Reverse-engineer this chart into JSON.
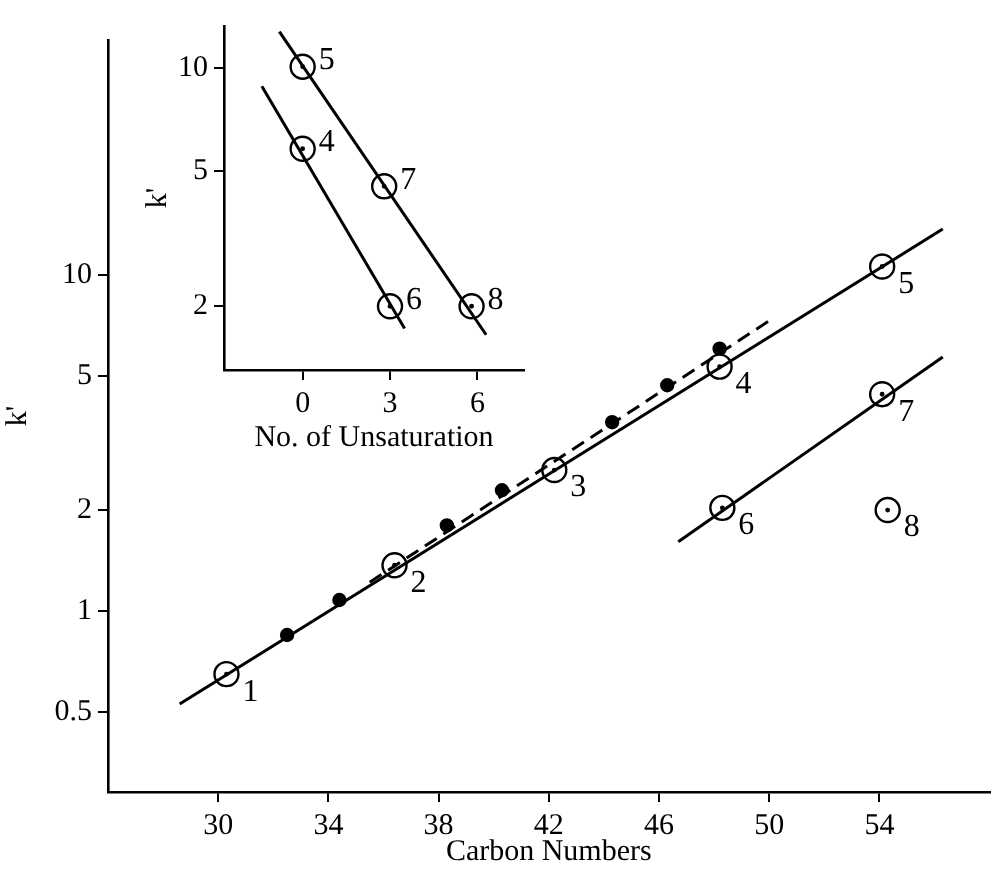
{
  "chart_data": [
    {
      "type": "scatter",
      "xlabel": "Carbon Numbers",
      "ylabel": "k'",
      "log": true,
      "grid": false,
      "legend": false,
      "xlim": [
        26,
        58
      ],
      "xticks": [
        30,
        34,
        38,
        42,
        46,
        50,
        54
      ],
      "ylim": [
        0.29,
        50
      ],
      "yticks": [
        0.5,
        1,
        2,
        5,
        10
      ],
      "series": [
        {
          "type": "line",
          "color": "#000000",
          "line_style": "solid",
          "marker": "none",
          "x": [
            28.6,
            56.3
          ],
          "values": [
            0.53,
            13.7
          ]
        },
        {
          "type": "line",
          "color": "#000000",
          "line_style": "dashed",
          "marker": "none",
          "x": [
            35.5,
            50.1
          ],
          "values": [
            1.22,
            7.4
          ]
        },
        {
          "type": "line",
          "color": "#000000",
          "line_style": "solid",
          "marker": "none",
          "x": [
            46.7,
            56.3
          ],
          "values": [
            1.61,
            5.7
          ]
        },
        {
          "type": "scatter",
          "color": "#ffffff",
          "marker": "circle",
          "x": [
            30.3,
            36.4,
            42.2,
            48.2,
            54.1,
            48.3,
            54.1,
            54.3
          ],
          "values": [
            0.65,
            1.37,
            2.63,
            5.34,
            10.6,
            2.03,
            4.42,
            2.0
          ]
        },
        {
          "type": "scatter",
          "color": "#000000",
          "marker": "circle",
          "x": [
            32.5,
            34.4,
            38.3,
            40.3,
            44.3,
            46.3,
            48.2
          ],
          "values": [
            0.85,
            1.08,
            1.8,
            2.29,
            3.65,
            4.7,
            6.04
          ]
        }
      ],
      "annotations": [
        {
          "text": "1",
          "x": 30.3,
          "y": 0.65
        },
        {
          "text": "2",
          "x": 36.4,
          "y": 1.37
        },
        {
          "text": "3",
          "x": 42.2,
          "y": 2.63
        },
        {
          "text": "4",
          "x": 48.2,
          "y": 5.34
        },
        {
          "text": "5",
          "x": 54.1,
          "y": 10.6
        },
        {
          "text": "6",
          "x": 48.3,
          "y": 2.03
        },
        {
          "text": "7",
          "x": 54.1,
          "y": 4.42
        },
        {
          "text": "8",
          "x": 54.3,
          "y": 2.0
        }
      ]
    },
    {
      "type": "scatter",
      "xlabel": "No. of Unsaturation",
      "ylabel": "k'",
      "log": true,
      "grid": false,
      "legend": false,
      "xlim": [
        -2.7,
        7.6
      ],
      "xticks": [
        0,
        3,
        6
      ],
      "ylim": [
        1.3,
        13.3
      ],
      "yticks": [
        2,
        5,
        10
      ],
      "series": [
        {
          "type": "line",
          "color": "#000000",
          "line_style": "solid",
          "marker": "none",
          "x": [
            -0.8,
            6.3
          ],
          "values": [
            12.8,
            1.65
          ]
        },
        {
          "type": "line",
          "color": "#000000",
          "line_style": "solid",
          "marker": "none",
          "x": [
            -1.4,
            3.5
          ],
          "values": [
            8.85,
            1.72
          ]
        },
        {
          "type": "scatter",
          "color": "#ffffff",
          "marker": "circle",
          "x": [
            0,
            2.8,
            5.8,
            0,
            3
          ],
          "values": [
            10.1,
            4.5,
            2.0,
            5.8,
            2.0
          ]
        }
      ],
      "annotations": [
        {
          "text": "5",
          "x": 0,
          "y": 10.1
        },
        {
          "text": "7",
          "x": 2.8,
          "y": 4.5
        },
        {
          "text": "8",
          "x": 5.8,
          "y": 2.0
        },
        {
          "text": "4",
          "x": 0,
          "y": 5.8
        },
        {
          "text": "6",
          "x": 3,
          "y": 2.0
        }
      ]
    }
  ]
}
